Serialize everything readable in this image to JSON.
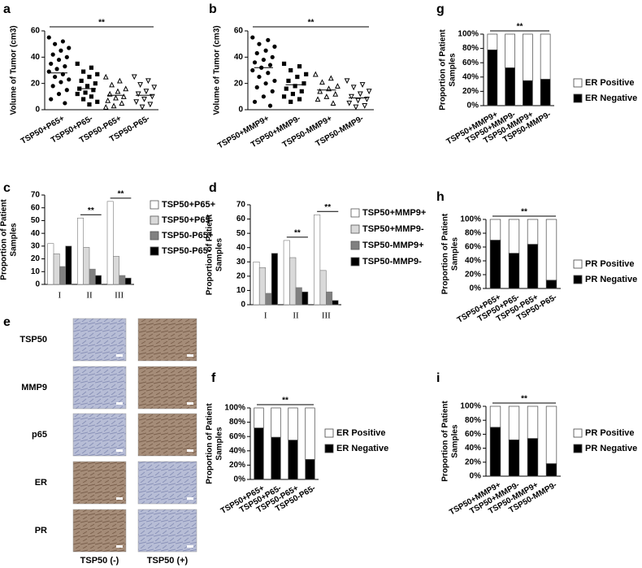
{
  "chart_data": [
    {
      "type": "scatter",
      "panel": "a",
      "y_label": [
        "Volume of Tumor (cm3)"
      ],
      "significance_label": "**",
      "categories": [
        "TSP50+P65+",
        "TSP50+P65-",
        "TSP50-P65+",
        "TSP50-P65-"
      ],
      "groups": [
        [
          55,
          52,
          50,
          47,
          45,
          42,
          40,
          38,
          35,
          33,
          31,
          29,
          27,
          25,
          23,
          21,
          18,
          15,
          12,
          8,
          5
        ],
        [
          35,
          32,
          29,
          27,
          25,
          22,
          20,
          18,
          16,
          15,
          13,
          12,
          10,
          8,
          6,
          4
        ],
        [
          25,
          22,
          19,
          16,
          14,
          12,
          10,
          9,
          7,
          5,
          3,
          2
        ],
        [
          25,
          22,
          19,
          17,
          14,
          12,
          10,
          8,
          6,
          4,
          2
        ]
      ],
      "means": [
        28,
        16,
        11,
        11
      ],
      "color": "#000000",
      "ylim": [
        0,
        60
      ],
      "yticks": [
        0,
        20,
        40,
        60
      ]
    },
    {
      "type": "scatter",
      "panel": "b",
      "y_label": [
        "Volume of Tumor (cm3)"
      ],
      "significance_label": "**",
      "categories": [
        "TSP50+MMP9+",
        "TSP50+MMP9-",
        "TSP50-MMP9+",
        "TSP50-MMP9-"
      ],
      "groups": [
        [
          55,
          53,
          50,
          48,
          45,
          43,
          40,
          38,
          36,
          34,
          32,
          30,
          28,
          25,
          22,
          20,
          17,
          14,
          10,
          6,
          3
        ],
        [
          35,
          33,
          30,
          27,
          25,
          22,
          20,
          18,
          16,
          14,
          12,
          10,
          8,
          6
        ],
        [
          27,
          24,
          21,
          18,
          16,
          14,
          12,
          10,
          8,
          5
        ],
        [
          22,
          19,
          17,
          14,
          12,
          10,
          8,
          7,
          5,
          3,
          2
        ]
      ],
      "means": [
        32,
        19,
        15,
        9
      ],
      "color": "#000000",
      "ylim": [
        0,
        60
      ],
      "yticks": [
        0,
        20,
        40,
        60
      ]
    },
    {
      "type": "grouped_bar",
      "panel": "c",
      "y_label": [
        "Proportion of Patient",
        "Samples"
      ],
      "significance_label": "**",
      "significance_categories": [
        "II",
        "III"
      ],
      "categories": [
        "I",
        "II",
        "III"
      ],
      "series": [
        {
          "name": "TSP50+P65+",
          "color": "#ffffff",
          "values": [
            32,
            52,
            65
          ]
        },
        {
          "name": "TSP50+P65-",
          "color": "#d9d9d9",
          "values": [
            24,
            29,
            22
          ]
        },
        {
          "name": "TSP50-P65+",
          "color": "#808080",
          "values": [
            14,
            12,
            7
          ]
        },
        {
          "name": "TSP50-P65-",
          "color": "#000000",
          "values": [
            30,
            7,
            5
          ]
        }
      ],
      "ylim": [
        0,
        70
      ],
      "yticks": [
        0,
        10,
        20,
        30,
        40,
        50,
        60,
        70
      ]
    },
    {
      "type": "grouped_bar",
      "panel": "d",
      "y_label": [
        "Proportion of Patient",
        "Samples"
      ],
      "significance_label": "**",
      "significance_categories": [
        "II",
        "III"
      ],
      "categories": [
        "I",
        "II",
        "III"
      ],
      "series": [
        {
          "name": "TSP50+MMP9+",
          "color": "#ffffff",
          "values": [
            30,
            45,
            63
          ]
        },
        {
          "name": "TSP50+MMP9-",
          "color": "#d9d9d9",
          "values": [
            26,
            33,
            24
          ]
        },
        {
          "name": "TSP50-MMP9+",
          "color": "#808080",
          "values": [
            8,
            12,
            9
          ]
        },
        {
          "name": "TSP50-MMP9-",
          "color": "#000000",
          "values": [
            36,
            9,
            3
          ]
        }
      ],
      "ylim": [
        0,
        70
      ],
      "yticks": [
        0,
        10,
        20,
        30,
        40,
        50,
        60,
        70
      ]
    },
    {
      "type": "stacked_bar",
      "panel": "f",
      "y_label": [
        "Proportion of Patient",
        "Samples"
      ],
      "significance_label": "**",
      "categories": [
        "TSP50+P65+",
        "TSP50+P65-",
        "TSP50-P65+",
        "TSP50-P65-"
      ],
      "series": [
        {
          "name": "ER Negative",
          "color": "#000000",
          "values": [
            72,
            59,
            55,
            28
          ]
        },
        {
          "name": "ER Positive",
          "color": "#ffffff",
          "values": [
            28,
            41,
            45,
            72
          ]
        }
      ],
      "ylim": [
        0,
        100
      ],
      "yticks": [
        {
          "value": 0,
          "label": "0%"
        },
        {
          "value": 20,
          "label": "20%"
        },
        {
          "value": 40,
          "label": "40%"
        },
        {
          "value": 60,
          "label": "60%"
        },
        {
          "value": 80,
          "label": "80%"
        },
        {
          "value": 100,
          "label": "100%"
        }
      ]
    },
    {
      "type": "stacked_bar",
      "panel": "g",
      "y_label": [
        "Proportion of Patient",
        "Samples"
      ],
      "significance_label": "**",
      "categories": [
        "TSP50+MMP9+",
        "TSP50+MMP9-",
        "TSP50-MMP9+",
        "TSP50-MMP9-"
      ],
      "series": [
        {
          "name": "ER Negative",
          "color": "#000000",
          "values": [
            78,
            53,
            35,
            37
          ]
        },
        {
          "name": "ER Positive",
          "color": "#ffffff",
          "values": [
            22,
            47,
            65,
            63
          ]
        }
      ],
      "ylim": [
        0,
        100
      ],
      "yticks": [
        {
          "value": 0,
          "label": "0%"
        },
        {
          "value": 20,
          "label": "20%"
        },
        {
          "value": 40,
          "label": "40%"
        },
        {
          "value": 60,
          "label": "60%"
        },
        {
          "value": 80,
          "label": "80%"
        },
        {
          "value": 100,
          "label": "100%"
        }
      ]
    },
    {
      "type": "stacked_bar",
      "panel": "h",
      "y_label": [
        "Proportion of Patient",
        "Samples"
      ],
      "significance_label": "**",
      "categories": [
        "TSP50+P65+",
        "TSP50+P65-",
        "TSP50-P65+",
        "TSP50-P65-"
      ],
      "series": [
        {
          "name": "PR Negative",
          "color": "#000000",
          "values": [
            70,
            51,
            64,
            12
          ]
        },
        {
          "name": "PR Positive",
          "color": "#ffffff",
          "values": [
            30,
            49,
            36,
            88
          ]
        }
      ],
      "ylim": [
        0,
        100
      ],
      "yticks": [
        {
          "value": 0,
          "label": "0%"
        },
        {
          "value": 20,
          "label": "20%"
        },
        {
          "value": 40,
          "label": "40%"
        },
        {
          "value": 60,
          "label": "60%"
        },
        {
          "value": 80,
          "label": "80%"
        },
        {
          "value": 100,
          "label": "100%"
        }
      ]
    },
    {
      "type": "stacked_bar",
      "panel": "i",
      "y_label": [
        "Proportion of Patient",
        "Samples"
      ],
      "significance_label": "**",
      "categories": [
        "TSP50+MMP9+",
        "TSP50+MMP9-",
        "TSP50-MMP9+",
        "TSP50-MMP9-"
      ],
      "series": [
        {
          "name": "PR Negative",
          "color": "#000000",
          "values": [
            70,
            52,
            54,
            18
          ]
        },
        {
          "name": "PR Positive",
          "color": "#ffffff",
          "values": [
            30,
            48,
            46,
            82
          ]
        }
      ],
      "ylim": [
        0,
        100
      ],
      "yticks": [
        {
          "value": 0,
          "label": "0%"
        },
        {
          "value": 20,
          "label": "20%"
        },
        {
          "value": 40,
          "label": "40%"
        },
        {
          "value": 60,
          "label": "60%"
        },
        {
          "value": 80,
          "label": "80%"
        },
        {
          "value": 100,
          "label": "100%"
        }
      ]
    }
  ],
  "image_panel": {
    "panel": "e",
    "rows": [
      "TSP50",
      "MMP9",
      "p65",
      "ER",
      "PR"
    ],
    "columns": [
      "TSP50 (-)",
      "TSP50 (+)"
    ]
  }
}
